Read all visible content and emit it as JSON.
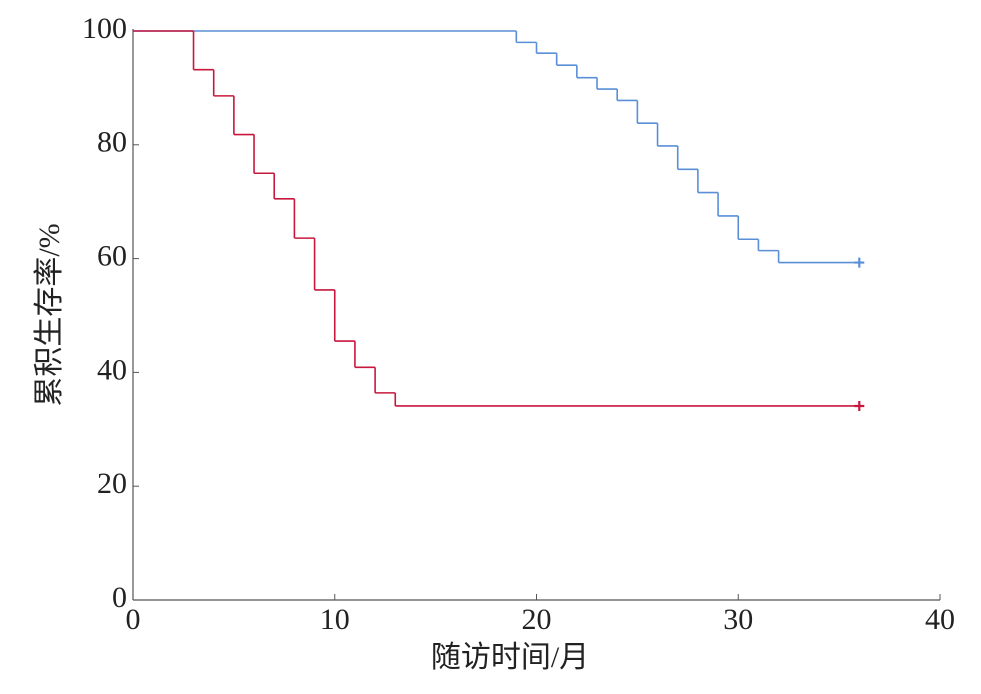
{
  "chart_data": {
    "type": "step",
    "xlabel": "随访时间/月",
    "ylabel": "累积生存率/%",
    "xlim": [
      0,
      40
    ],
    "xticks": [
      0,
      10,
      20,
      30,
      40
    ],
    "ylim": [
      0,
      100
    ],
    "yticks": [
      0,
      20,
      40,
      60,
      80,
      100
    ],
    "series": [
      {
        "color": "#5a8fd8",
        "x": [
          0,
          19,
          20,
          21,
          22,
          23,
          24,
          25,
          26,
          27,
          28,
          29,
          30,
          31,
          32,
          36
        ],
        "values": [
          100,
          98,
          96.1,
          94,
          91.8,
          89.8,
          87.8,
          83.8,
          79.8,
          75.7,
          71.6,
          67.5,
          63.4,
          61.4,
          59.3,
          59.3
        ]
      },
      {
        "color": "#c8173d",
        "x": [
          0,
          3,
          4,
          5,
          6,
          7,
          8,
          9,
          10,
          11,
          12,
          13,
          36
        ],
        "values": [
          100,
          93.2,
          88.6,
          81.8,
          75,
          70.5,
          63.6,
          54.5,
          45.5,
          40.9,
          36.4,
          34.1,
          34.1
        ]
      }
    ]
  }
}
